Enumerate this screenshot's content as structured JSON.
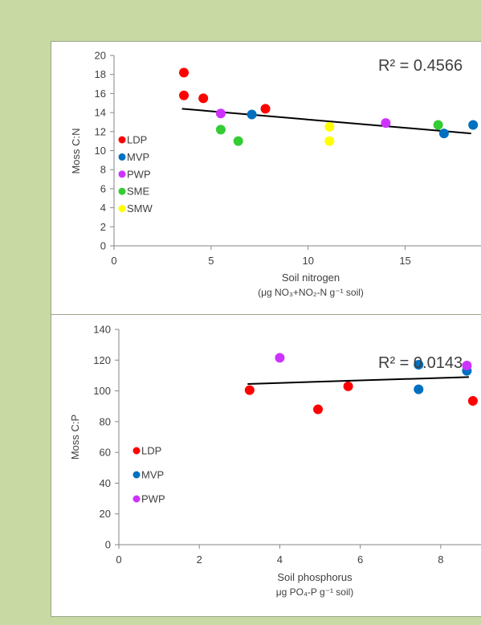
{
  "chart_data": [
    {
      "type": "scatter",
      "xlabel": "Soil nitrogen",
      "xlabel_line2": "(μg NO₃+NO₂-N g⁻¹ soil)",
      "ylabel": "Moss C:N",
      "annotation": "R² = 0.4566",
      "xlim": [
        0,
        18.7
      ],
      "ylim": [
        0,
        20
      ],
      "xticks": [
        0,
        5,
        10,
        15
      ],
      "yticks": [
        0,
        2,
        4,
        6,
        8,
        10,
        12,
        14,
        16,
        18,
        20
      ],
      "grid": false,
      "legend_position": "left",
      "trendline": {
        "x": [
          3.5,
          18.4
        ],
        "y": [
          14.4,
          11.8
        ]
      },
      "series": [
        {
          "name": "LDP",
          "color": "#ff0000",
          "x": [
            3.6,
            3.6,
            4.6,
            7.8
          ],
          "y": [
            18.2,
            15.8,
            15.5,
            14.4
          ]
        },
        {
          "name": "MVP",
          "color": "#0070c0",
          "x": [
            7.1,
            17.0,
            18.5
          ],
          "y": [
            13.8,
            11.8,
            12.7
          ]
        },
        {
          "name": "PWP",
          "color": "#cc33ff",
          "x": [
            5.5,
            14.0
          ],
          "y": [
            13.9,
            12.9
          ]
        },
        {
          "name": "SME",
          "color": "#33cc33",
          "x": [
            5.5,
            6.4,
            16.7
          ],
          "y": [
            12.2,
            11.0,
            12.7
          ]
        },
        {
          "name": "SMW",
          "color": "#ffff00",
          "x": [
            11.1,
            11.1
          ],
          "y": [
            12.5,
            11.0
          ]
        }
      ]
    },
    {
      "type": "scatter",
      "xlabel": "Soil phosphorus",
      "xlabel_line2": "μg PO₄-P g⁻¹ soil)",
      "ylabel": "Moss C:P",
      "annotation": "R² = 0.0143",
      "xlim": [
        0,
        9.5
      ],
      "ylim": [
        0,
        140
      ],
      "xticks": [
        0,
        2,
        4,
        6,
        8
      ],
      "yticks": [
        0,
        20,
        40,
        60,
        80,
        100,
        120,
        140
      ],
      "grid": false,
      "legend_position": "left",
      "trendline": {
        "x": [
          3.2,
          8.7
        ],
        "y": [
          104.5,
          109.0
        ]
      },
      "series": [
        {
          "name": "LDP",
          "color": "#ff0000",
          "x": [
            3.25,
            4.95,
            5.7,
            8.8
          ],
          "y": [
            100.5,
            88,
            103,
            93.5
          ]
        },
        {
          "name": "MVP",
          "color": "#0070c0",
          "x": [
            7.45,
            7.45,
            8.65
          ],
          "y": [
            117,
            101,
            113
          ]
        },
        {
          "name": "PWP",
          "color": "#cc33ff",
          "x": [
            4.0,
            8.65
          ],
          "y": [
            121.5,
            116.5
          ]
        }
      ]
    }
  ]
}
